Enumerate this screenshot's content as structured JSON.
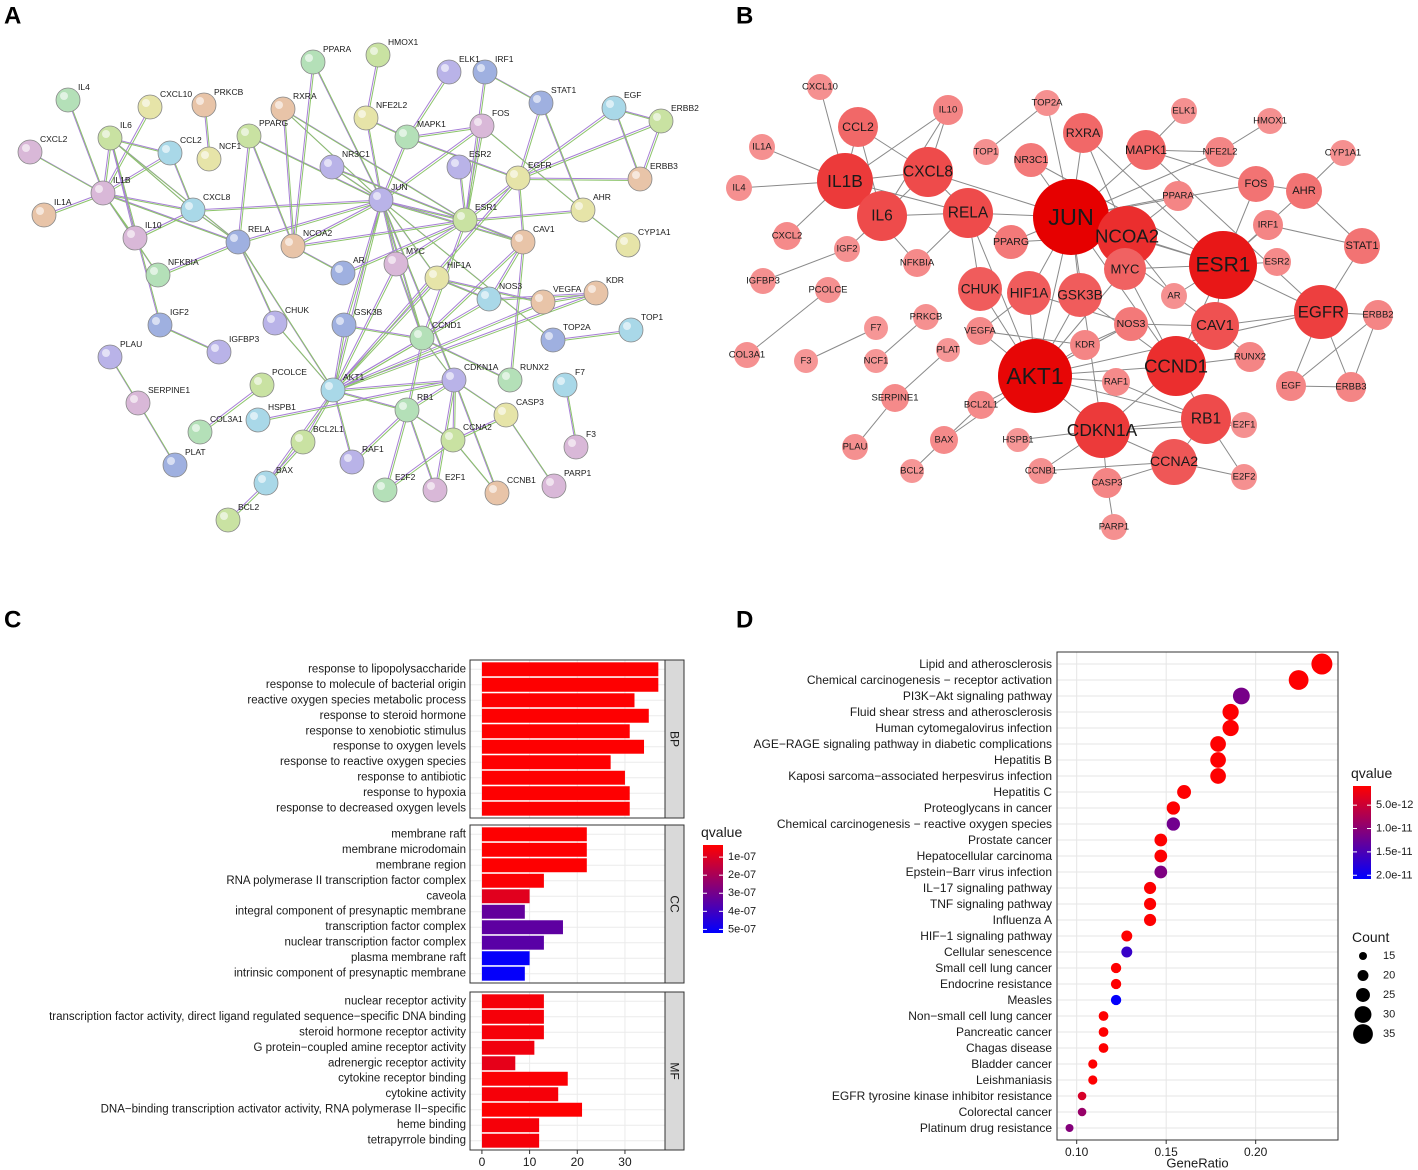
{
  "network_a": {
    "label": "A",
    "nodes": [
      "JUN",
      "ESR1",
      "AKT1",
      "NCOA2",
      "CCND1",
      "IL1B",
      "EGFR",
      "RELA",
      "CDKN1A",
      "IL6",
      "CXCL8",
      "CAV1",
      "RB1",
      "MYC",
      "HIF1A",
      "GSK3B",
      "CHUK",
      "CCNA2",
      "CCL2",
      "RXRA",
      "MAPK1",
      "FOS",
      "AHR",
      "STAT1",
      "NR3C1",
      "PPARG",
      "NOS3",
      "KDR",
      "PPARA",
      "IL10",
      "NFE2L2",
      "IRF1",
      "ESR2",
      "ERBB2",
      "EGF",
      "ERBB3",
      "RUNX2",
      "E2F1",
      "CASP3",
      "AR",
      "RAF1",
      "BCL2L1",
      "BAX",
      "VEGFA",
      "NFKBIA",
      "SERPINE1",
      "CXCL10",
      "TOP2A",
      "ELK1",
      "HMOX1",
      "TOP1",
      "IL1A",
      "IL4",
      "CXCL2",
      "CYP1A1",
      "IGF2",
      "IGFBP3",
      "PCOLCE",
      "F7",
      "PRKCB",
      "COL3A1",
      "F3",
      "NCF1",
      "PLAT",
      "PLAU",
      "BCL2",
      "HSPB1",
      "CCNB1",
      "E2F2",
      "PARP1"
    ]
  },
  "network_b": {
    "label": "B",
    "nodes": [
      "JUN",
      "ESR1",
      "AKT1",
      "NCOA2",
      "CCND1",
      "IL1B",
      "EGFR",
      "RELA",
      "CDKN1A",
      "IL6",
      "CXCL8",
      "CAV1",
      "RB1",
      "MYC",
      "HIF1A",
      "GSK3B",
      "CHUK",
      "CCNA2",
      "CCL2",
      "RXRA",
      "MAPK1",
      "FOS",
      "AHR",
      "STAT1",
      "NR3C1",
      "PPARG",
      "NOS3",
      "KDR",
      "PPARA",
      "IL10",
      "NFE2L2",
      "IRF1",
      "ESR2",
      "ERBB2",
      "EGF",
      "ERBB3",
      "RUNX2",
      "E2F1",
      "CASP3",
      "AR",
      "RAF1",
      "BCL2L1",
      "BAX",
      "VEGFA",
      "NFKBIA",
      "SERPINE1",
      "CXCL10",
      "TOP2A",
      "ELK1",
      "HMOX1",
      "TOP1",
      "IL1A",
      "IL4",
      "CXCL2",
      "CYP1A1",
      "IGF2",
      "IGFBP3",
      "PCOLCE",
      "F7",
      "PRKCB",
      "COL3A1",
      "F3",
      "NCF1",
      "PLAT",
      "PLAU",
      "BCL2",
      "HSPB1",
      "CCNB1",
      "E2F2",
      "PARP1"
    ]
  },
  "chart_data": [
    {
      "type": "bar",
      "panel_label": "C",
      "orientation": "horizontal",
      "facets": [
        {
          "label": "BP",
          "categories": [
            "response to lipopolysaccharide",
            "response to molecule of bacterial origin",
            "reactive oxygen species metabolic process",
            "response to steroid hormone",
            "response to xenobiotic stimulus",
            "response to oxygen levels",
            "response to reactive oxygen species",
            "response to antibiotic",
            "response to hypoxia",
            "response to decreased oxygen levels"
          ],
          "values": [
            37,
            37,
            32,
            35,
            31,
            34,
            27,
            30,
            31,
            31
          ],
          "qvalues": [
            3.5e-08,
            3.5e-08,
            3.5e-08,
            3.5e-08,
            3.5e-08,
            3.5e-08,
            3.5e-08,
            3.5e-08,
            3.5e-08,
            3.5e-08
          ]
        },
        {
          "label": "CC",
          "categories": [
            "membrane raft",
            "membrane microdomain",
            "membrane region",
            "RNA polymerase II transcription factor complex",
            "caveola",
            "integral component of presynaptic membrane",
            "transcription factor complex",
            "nuclear transcription factor complex",
            "plasma membrane raft",
            "intrinsic component of presynaptic membrane"
          ],
          "values": [
            22,
            22,
            22,
            13,
            10,
            9,
            17,
            13,
            10,
            9
          ],
          "qvalues": [
            3.5e-08,
            3.5e-08,
            3.5e-08,
            4e-08,
            9e-08,
            3.3e-07,
            3.4e-07,
            3.5e-07,
            5.1e-07,
            5.1e-07
          ]
        },
        {
          "label": "MF",
          "categories": [
            "nuclear receptor activity",
            "transcription factor activity, direct ligand regulated sequence−specific DNA binding",
            "steroid hormone receptor activity",
            "G protein−coupled amine receptor activity",
            "adrenergic receptor activity",
            "cytokine receptor binding",
            "cytokine activity",
            "DNA−binding transcription activator activity, RNA polymerase II−specific",
            "heme binding",
            "tetrapyrrole binding"
          ],
          "values": [
            13,
            13,
            13,
            11,
            7,
            18,
            16,
            21,
            12,
            12
          ],
          "qvalues": [
            5e-08,
            5e-08,
            5e-08,
            6e-08,
            8e-08,
            4e-08,
            5e-08,
            3.5e-08,
            5e-08,
            5e-08
          ]
        }
      ],
      "xlim": [
        -2.5,
        38.4
      ],
      "xticks": [
        0,
        10,
        20,
        30
      ],
      "grid": true,
      "color_legend": {
        "title": "qvalue",
        "lim": [
          3.3e-08,
          5.2e-07
        ],
        "low_color": "#ff0000",
        "high_color": "#0000ff",
        "ticks": [
          {
            "value": 1e-07,
            "label": "1e-07"
          },
          {
            "value": 2e-07,
            "label": "2e-07"
          },
          {
            "value": 3e-07,
            "label": "3e-07"
          },
          {
            "value": 4e-07,
            "label": "4e-07"
          },
          {
            "value": 5e-07,
            "label": "5e-07"
          }
        ]
      }
    },
    {
      "type": "scatter",
      "panel_label": "D",
      "categories": [
        "Lipid and atherosclerosis",
        "Chemical carcinogenesis − receptor activation",
        "PI3K−Akt signaling pathway",
        "Fluid shear stress and atherosclerosis",
        "Human cytomegalovirus infection",
        "AGE−RAGE signaling pathway in diabetic complications",
        "Hepatitis B",
        "Kaposi sarcoma−associated herpesvirus infection",
        "Hepatitis C",
        "Proteoglycans in cancer",
        "Chemical carcinogenesis − reactive oxygen species",
        "Prostate cancer",
        "Hepatocellular carcinoma",
        "Epstein−Barr virus infection",
        "IL−17 signaling pathway",
        "TNF signaling pathway",
        "Influenza A",
        "HIF−1 signaling pathway",
        "Cellular senescence",
        "Small cell lung cancer",
        "Endocrine resistance",
        "Measles",
        "Non−small cell lung cancer",
        "Pancreatic cancer",
        "Chagas disease",
        "Bladder cancer",
        "Leishmaniasis",
        "EGFR tyrosine kinase inhibitor resistance",
        "Colorectal cancer",
        "Platinum drug resistance"
      ],
      "x": [
        0.237,
        0.224,
        0.192,
        0.186,
        0.186,
        0.179,
        0.179,
        0.179,
        0.16,
        0.154,
        0.154,
        0.147,
        0.147,
        0.147,
        0.141,
        0.141,
        0.141,
        0.128,
        0.128,
        0.122,
        0.122,
        0.122,
        0.115,
        0.115,
        0.115,
        0.109,
        0.109,
        0.103,
        0.103,
        0.096
      ],
      "sizes": [
        37,
        35,
        30,
        29,
        29,
        28,
        28,
        28,
        25,
        24,
        24,
        23,
        23,
        23,
        22,
        22,
        22,
        20,
        20,
        19,
        19,
        19,
        18,
        18,
        18,
        17,
        17,
        16,
        16,
        15
      ],
      "qvalues": [
        1e-12,
        1e-12,
        1.15e-11,
        1e-12,
        1e-12,
        1e-12,
        1e-12,
        1e-12,
        1e-12,
        1e-12,
        1.2e-11,
        1e-12,
        1e-12,
        1.1e-11,
        1e-12,
        1e-12,
        1e-12,
        1e-12,
        1.65e-11,
        1e-12,
        1e-12,
        2.05e-11,
        1e-12,
        1e-12,
        1e-12,
        1e-12,
        1e-12,
        4e-12,
        9e-12,
        1.05e-11
      ],
      "highlighted": [
        2,
        14,
        15
      ],
      "highlight_color": "#ff0000",
      "xlabel": "GeneRatio",
      "xlim": [
        0.089,
        0.246
      ],
      "xticks": [
        {
          "value": 0.1,
          "label": "0.10"
        },
        {
          "value": 0.15,
          "label": "0.15"
        },
        {
          "value": 0.2,
          "label": "0.20"
        }
      ],
      "grid": true,
      "color_legend": {
        "title": "qvalue",
        "lim": [
          9e-13,
          2.08e-11
        ],
        "low_color": "#ff0000",
        "high_color": "#0000ff",
        "ticks": [
          {
            "value": 5e-12,
            "label": "5.0e-12"
          },
          {
            "value": 1e-11,
            "label": "1.0e-11"
          },
          {
            "value": 1.5e-11,
            "label": "1.5e-11"
          },
          {
            "value": 2e-11,
            "label": "2.0e-11"
          }
        ]
      },
      "size_legend": {
        "title": "Count",
        "ticks": [
          15,
          20,
          25,
          30,
          35
        ]
      }
    }
  ]
}
